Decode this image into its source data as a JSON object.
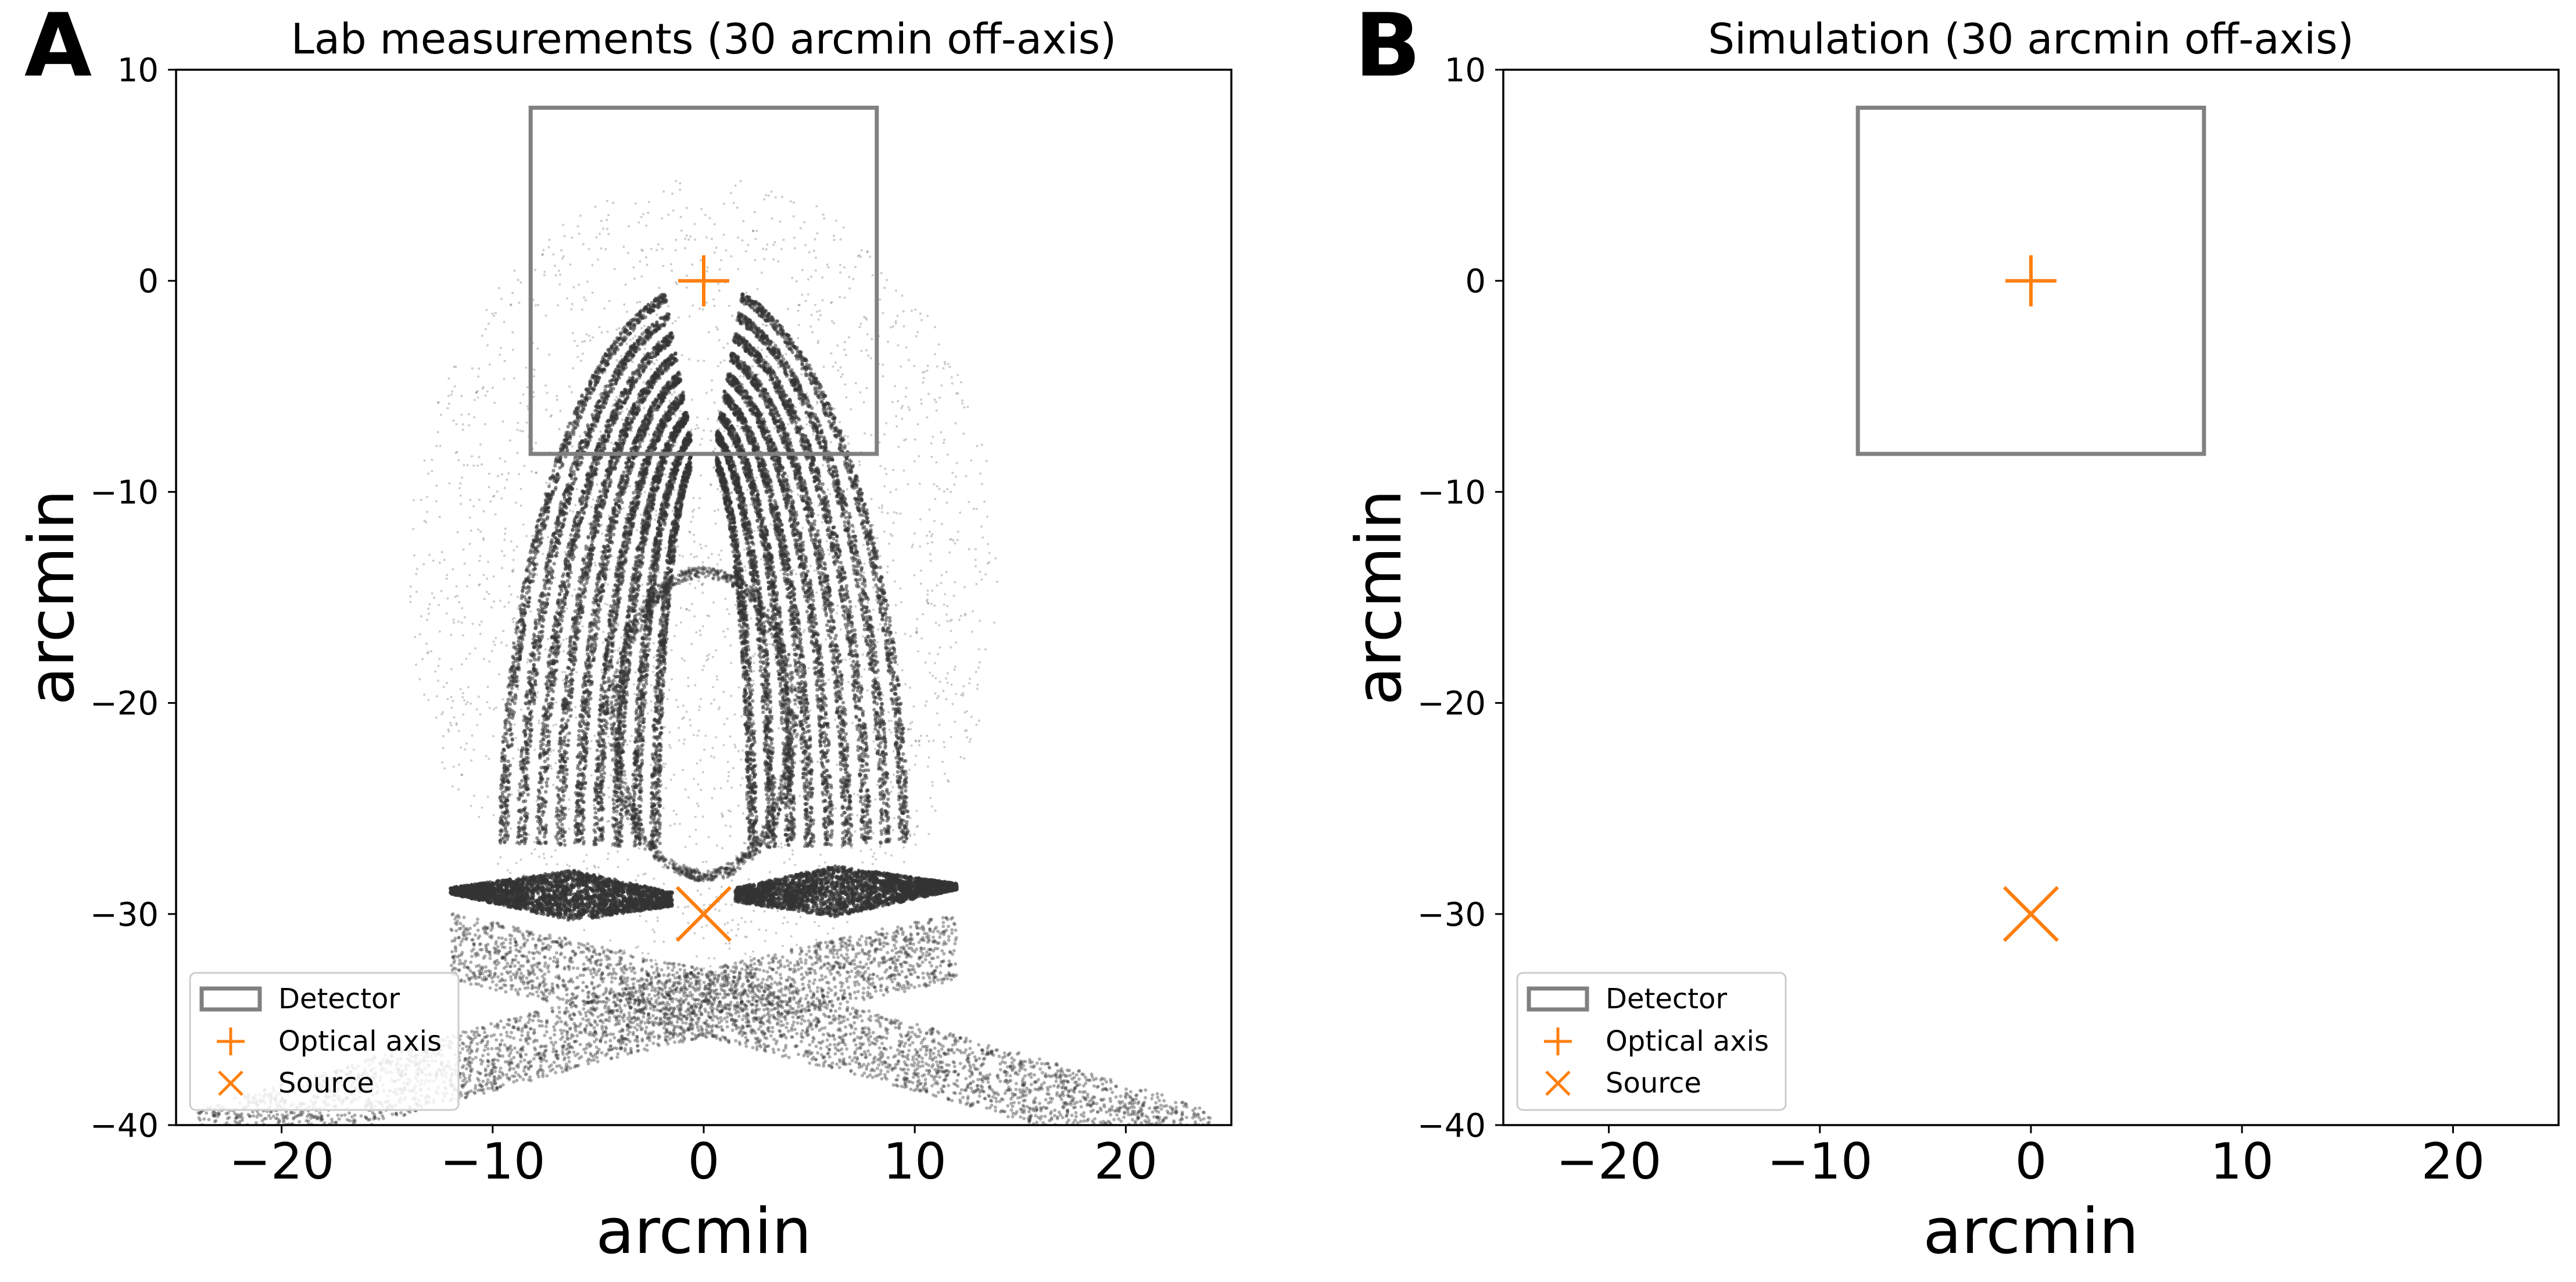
{
  "colors": {
    "accent": "#ff7f0e",
    "detector": "#808080",
    "data": "#333333",
    "axes": "#000000",
    "legend_border": "#cccccc"
  },
  "chart_data": [
    {
      "type": "scatter",
      "panel_label": "A",
      "title": "Lab measurements (30 arcmin off-axis)",
      "xlabel": "arcmin",
      "ylabel": "arcmin",
      "xlim": [
        -25,
        25
      ],
      "ylim": [
        -40,
        10
      ],
      "xticks": [
        -20,
        -10,
        0,
        10,
        20
      ],
      "xtick_labels": [
        "−20",
        "−10",
        "0",
        "10",
        "20"
      ],
      "yticks": [
        10,
        0,
        -10,
        -20,
        -30,
        -40
      ],
      "ytick_labels": [
        "10",
        "0",
        "−10",
        "−20",
        "−30",
        "−40"
      ],
      "grid": false,
      "legend_position": "lower-left",
      "legend": [
        {
          "label": "Detector",
          "marker": "rectangle-outline"
        },
        {
          "label": "Optical axis",
          "marker": "plus"
        },
        {
          "label": "Source",
          "marker": "x"
        }
      ],
      "detector": {
        "x": [
          -8.2,
          8.2
        ],
        "y": [
          -8.2,
          8.2
        ]
      },
      "optical_axis": {
        "x": 0,
        "y": 0
      },
      "source": {
        "x": 0,
        "y": -30
      },
      "has_measurements": true
    },
    {
      "type": "scatter",
      "panel_label": "B",
      "title": "Simulation (30 arcmin off-axis)",
      "xlabel": "arcmin",
      "ylabel": "arcmin",
      "xlim": [
        -25,
        25
      ],
      "ylim": [
        -40,
        10
      ],
      "xticks": [
        -20,
        -10,
        0,
        10,
        20
      ],
      "xtick_labels": [
        "−20",
        "−10",
        "0",
        "10",
        "20"
      ],
      "yticks": [
        10,
        0,
        -10,
        -20,
        -30,
        -40
      ],
      "ytick_labels": [
        "10",
        "0",
        "−10",
        "−20",
        "−30",
        "−40"
      ],
      "grid": false,
      "legend_position": "lower-left",
      "legend": [
        {
          "label": "Detector",
          "marker": "rectangle-outline"
        },
        {
          "label": "Optical axis",
          "marker": "plus"
        },
        {
          "label": "Source",
          "marker": "x"
        }
      ],
      "detector": {
        "x": [
          -8.2,
          8.2
        ],
        "y": [
          -8.2,
          8.2
        ]
      },
      "optical_axis": {
        "x": 0,
        "y": 0
      },
      "source": {
        "x": 0,
        "y": -30
      },
      "has_measurements": false
    }
  ]
}
